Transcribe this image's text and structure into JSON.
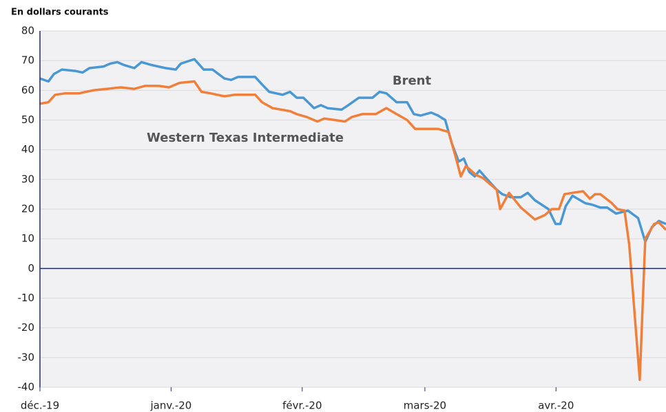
{
  "chart_data": {
    "type": "line",
    "ylabel": "En dollars courants",
    "annotations": [
      "Brent",
      "Western Texas Intermediate"
    ],
    "xlim": [
      0,
      148
    ],
    "xticks": [
      {
        "value": 0,
        "label": "déc.-19"
      },
      {
        "value": 31,
        "label": "janv.-20"
      },
      {
        "value": 62,
        "label": "févr.-20"
      },
      {
        "value": 91,
        "label": "mars-20"
      },
      {
        "value": 122,
        "label": "avr.-20"
      }
    ],
    "ylim": [
      -40,
      80
    ],
    "yticks": [
      -40,
      -30,
      -20,
      -10,
      0,
      10,
      20,
      30,
      40,
      50,
      60,
      70,
      80
    ],
    "grid": true,
    "series": [
      {
        "name": "Brent",
        "color": "#4a98d3",
        "x": [
          0,
          2,
          3.3,
          5.2,
          8.5,
          10.1,
          11.7,
          15,
          16.6,
          18.3,
          19.9,
          22.3,
          24,
          26.4,
          29.7,
          32.1,
          33.3,
          36.5,
          38.7,
          40.8,
          43.6,
          45.2,
          46.8,
          50.9,
          52.5,
          54.2,
          57.4,
          59.1,
          60.7,
          62.3,
          64.8,
          66.4,
          68,
          71.3,
          72.9,
          75.4,
          78.6,
          80.3,
          81.9,
          84.3,
          86.8,
          88.4,
          90,
          92.5,
          94.1,
          95.8,
          97.4,
          99,
          100.2,
          101.5,
          102.8,
          103.9,
          106.4,
          108,
          109.3,
          111.3,
          113.7,
          115.3,
          117,
          120.2,
          121.9,
          123,
          124.3,
          125.9,
          128.9,
          130.5,
          132.5,
          134.1,
          136.2,
          139,
          141.4,
          143.1,
          144.7,
          146.3,
          148
        ],
        "values": [
          64,
          63,
          65.5,
          67,
          66.5,
          66,
          67.5,
          68,
          69,
          69.5,
          68.5,
          67.5,
          69.5,
          68.5,
          67.5,
          67,
          69,
          70.5,
          67,
          67,
          64,
          63.5,
          64.5,
          64.5,
          62,
          59.5,
          58.5,
          59.5,
          57.5,
          57.5,
          54,
          55,
          54,
          53.5,
          55,
          57.5,
          57.5,
          59.5,
          59,
          56,
          56,
          52,
          51.5,
          52.5,
          51.5,
          50,
          42,
          36,
          37,
          32.5,
          31,
          33,
          29,
          26.5,
          25,
          24,
          24,
          25.5,
          23,
          20,
          15,
          15,
          21,
          24.5,
          22,
          21.5,
          20.5,
          20.5,
          18.5,
          19.5,
          17,
          9,
          14,
          16,
          15
        ]
      },
      {
        "name": "Western Texas Intermediate",
        "color": "#f07f3a",
        "x": [
          0,
          2,
          3.6,
          6,
          9.3,
          10.9,
          12.6,
          15.8,
          19.1,
          22.3,
          24.8,
          28.1,
          30.5,
          33,
          36.5,
          38.2,
          40.3,
          43.6,
          46,
          50.9,
          52.5,
          55,
          59.1,
          60.7,
          63.1,
          65.6,
          67.2,
          69.7,
          72.1,
          73.7,
          76.2,
          79.4,
          81.9,
          84.3,
          86.8,
          88.7,
          92.5,
          94.1,
          96.6,
          98.2,
          99.5,
          100.7,
          103.1,
          104.7,
          108,
          108.8,
          110.9,
          113.7,
          117,
          119.4,
          121,
          122.7,
          124,
          125.9,
          128.4,
          130,
          131.2,
          132.5,
          135.2,
          136.5,
          138.2,
          139.3,
          141.8,
          143.1,
          145.2,
          146.3,
          148
        ],
        "values": [
          55.5,
          56,
          58.5,
          59,
          59,
          59.5,
          60,
          60.5,
          61,
          60.5,
          61.5,
          61.5,
          61,
          62.5,
          63,
          59.5,
          59,
          58,
          58.5,
          58.5,
          56,
          54,
          53,
          52,
          51,
          49.5,
          50.5,
          50,
          49.5,
          51,
          52,
          52,
          54,
          52,
          50,
          47,
          47,
          47,
          46,
          38,
          31,
          34.5,
          31.5,
          30.5,
          26.5,
          20,
          25.5,
          20.5,
          16.5,
          18,
          20,
          20,
          25,
          25.5,
          26,
          23.5,
          25,
          25,
          22,
          20,
          19.5,
          8,
          -37.5,
          10,
          15,
          15.5,
          13
        ]
      }
    ]
  }
}
